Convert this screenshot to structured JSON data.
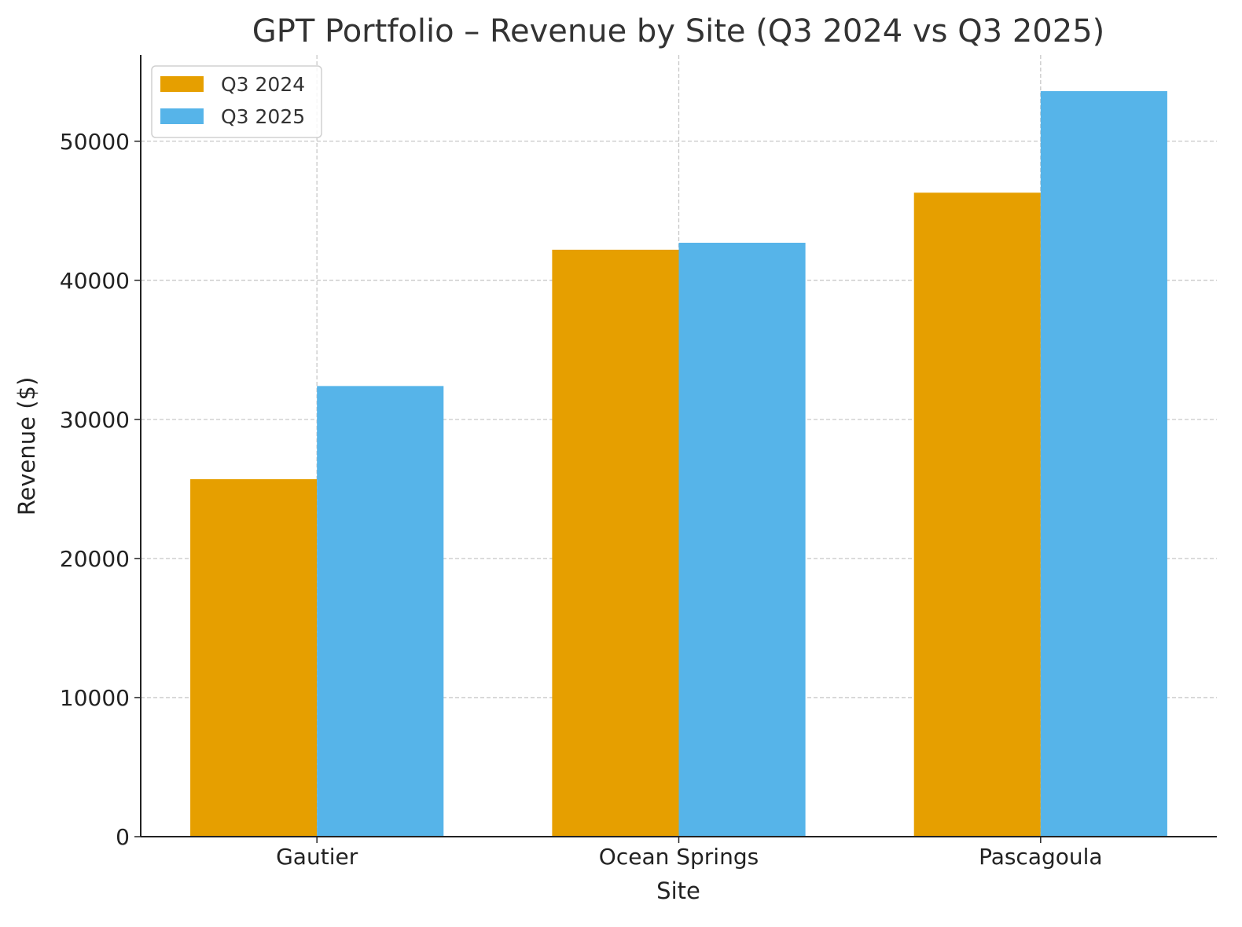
{
  "chart_data": {
    "type": "bar",
    "title": "GPT Portfolio – Revenue by Site (Q3 2024 vs Q3 2025)",
    "xlabel": "Site",
    "ylabel": "Revenue ($)",
    "categories": [
      "Gautier",
      "Ocean Springs",
      "Pascagoula"
    ],
    "series": [
      {
        "name": "Q3 2024",
        "color": "#E69F00",
        "values": [
          25700,
          42200,
          46300
        ]
      },
      {
        "name": "Q3 2025",
        "color": "#56B4E9",
        "values": [
          32400,
          42700,
          53600
        ]
      }
    ],
    "ylim": [
      0,
      56200
    ],
    "yticks": [
      0,
      10000,
      20000,
      30000,
      40000,
      50000
    ],
    "grid": true,
    "grid_style": "dashed",
    "legend_position": "top-left"
  }
}
